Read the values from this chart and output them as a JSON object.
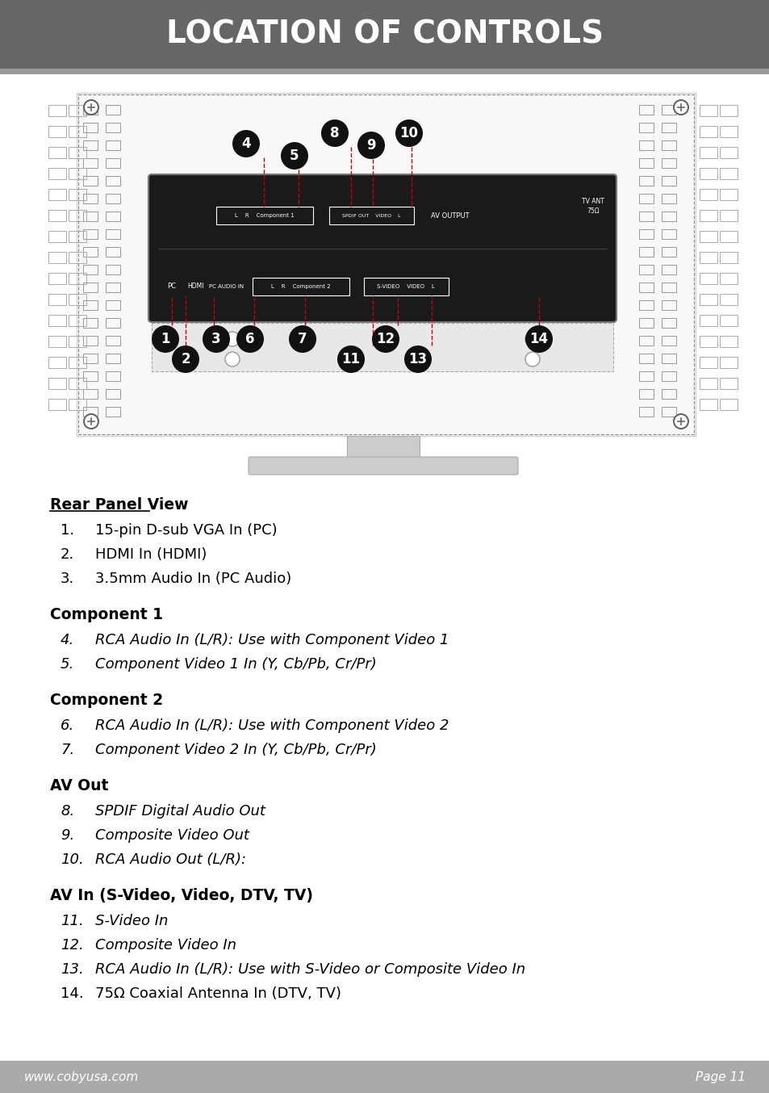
{
  "title": "LOCATION OF CONTROLS",
  "title_bg": "#666666",
  "title_color": "#ffffff",
  "title_fontsize": 28,
  "footer_bg": "#aaaaaa",
  "footer_left": "www.cobyusa.com",
  "footer_right": "Page 11",
  "footer_color": "#ffffff",
  "page_bg": "#ffffff",
  "gray_line_color": "#999999",
  "panel_bg": "#1a1a1a",
  "panel_border": "#555555",
  "callout_bg": "#111111",
  "callout_color": "#ffffff",
  "dashed_line_color": "#cc0000",
  "vent_color": "#888888",
  "outer_frame_color": "#444444",
  "stand_color": "#cccccc",
  "sections": [
    {
      "header": "Rear Panel View",
      "underline": true,
      "items": [
        {
          "num": "1.",
          "text": "15-pin D-sub VGA In (PC)",
          "italic": false
        },
        {
          "num": "2.",
          "text": "HDMI In (HDMI)",
          "italic": false
        },
        {
          "num": "3.",
          "text": "3.5mm Audio In (PC Audio)",
          "italic": false
        }
      ]
    },
    {
      "header": "Component 1",
      "underline": false,
      "items": [
        {
          "num": "4.",
          "text": "RCA Audio In (L/R): Use with Component Video 1",
          "italic": true
        },
        {
          "num": "5.",
          "text": "Component Video 1 In (Y, Cb/Pb, Cr/Pr)",
          "italic": true
        }
      ]
    },
    {
      "header": "Component 2",
      "underline": false,
      "items": [
        {
          "num": "6.",
          "text": "RCA Audio In (L/R): Use with Component Video 2",
          "italic": true
        },
        {
          "num": "7.",
          "text": "Component Video 2 In (Y, Cb/Pb, Cr/Pr)",
          "italic": true
        }
      ]
    },
    {
      "header": "AV Out",
      "underline": false,
      "items": [
        {
          "num": "8.",
          "text": "SPDIF Digital Audio Out",
          "italic": true
        },
        {
          "num": "9.",
          "text": "Composite Video Out",
          "italic": true
        },
        {
          "num": "10.",
          "text": "RCA Audio Out (L/R):",
          "italic": true
        }
      ]
    },
    {
      "header": "AV In (S-Video, Video, DTV, TV)",
      "underline": false,
      "items": [
        {
          "num": "11.",
          "text": "S-Video In",
          "italic": true
        },
        {
          "num": "12.",
          "text": "Composite Video In",
          "italic": true
        },
        {
          "num": "13.",
          "text": "RCA Audio In (L/R): Use with S-Video or Composite Video In",
          "italic": true
        },
        {
          "num": "14.",
          "text": "75Ω Coaxial Antenna In (DTV, TV)",
          "italic": false
        }
      ]
    }
  ]
}
